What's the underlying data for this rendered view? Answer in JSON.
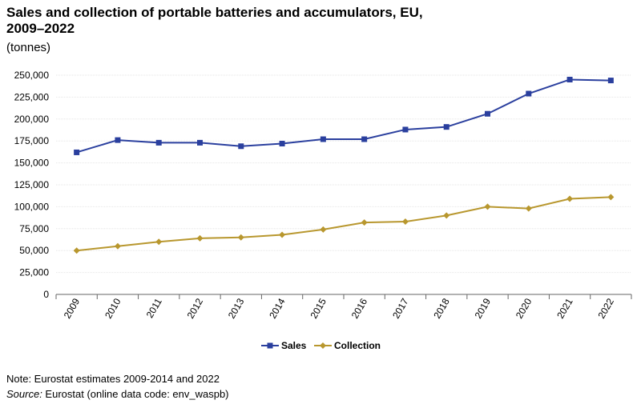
{
  "chart_data": {
    "type": "line",
    "title_line1": "Sales and collection of portable batteries and accumulators, EU,",
    "title_line2": "2009–2022",
    "subtitle": "(tonnes)",
    "x": [
      "2009",
      "2010",
      "2011",
      "2012",
      "2013",
      "2014",
      "2015",
      "2016",
      "2017",
      "2018",
      "2019",
      "2020",
      "2021",
      "2022"
    ],
    "ylim": [
      0,
      250000
    ],
    "yticks": [
      0,
      25000,
      50000,
      75000,
      100000,
      125000,
      150000,
      175000,
      200000,
      225000,
      250000
    ],
    "ytick_labels": [
      "0",
      "25,000",
      "50,000",
      "75,000",
      "100,000",
      "125,000",
      "150,000",
      "175,000",
      "200,000",
      "225,000",
      "250,000"
    ],
    "grid": true,
    "legend_position": "bottom",
    "series": [
      {
        "name": "Sales",
        "color": "#2a3f9e",
        "marker": "square",
        "values": [
          162000,
          176000,
          173000,
          173000,
          169000,
          172000,
          177000,
          177000,
          188000,
          191000,
          206000,
          229000,
          245000,
          244000
        ]
      },
      {
        "name": "Collection",
        "color": "#b8972e",
        "marker": "diamond",
        "values": [
          50000,
          55000,
          60000,
          64000,
          65000,
          68000,
          74000,
          82000,
          83000,
          90000,
          100000,
          98000,
          109000,
          111000
        ]
      }
    ]
  },
  "footer": {
    "note": "Note: Eurostat estimates 2009-2014 and 2022",
    "source_label": "Source:",
    "source_text": " Eurostat (online data code: env_waspb)"
  }
}
